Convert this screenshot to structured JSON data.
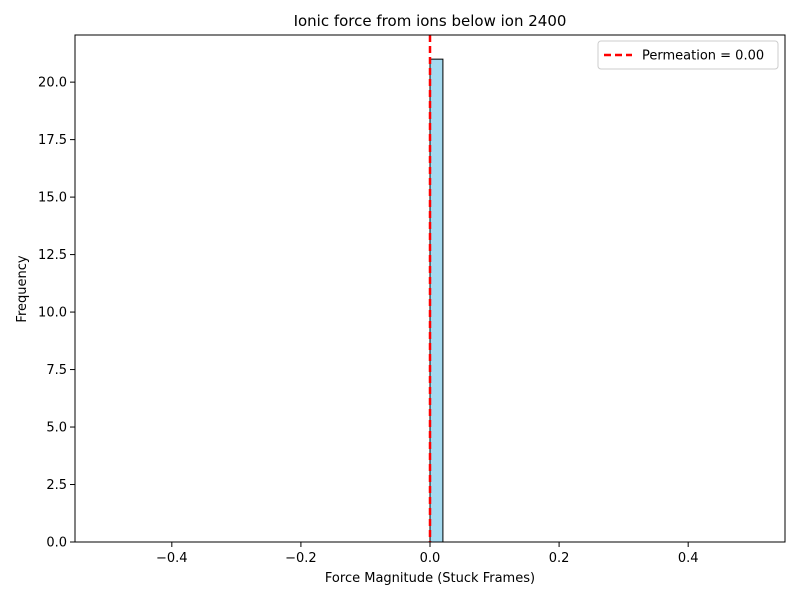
{
  "chart_data": {
    "type": "bar",
    "title": "Ionic force from ions below ion 2400",
    "xlabel": "Force Magnitude (Stuck Frames)",
    "ylabel": "Frequency",
    "xlim": [
      -0.55,
      0.55
    ],
    "ylim": [
      0,
      22.05
    ],
    "xticks": [
      -0.4,
      -0.2,
      0.0,
      0.2,
      0.4
    ],
    "xtick_labels": [
      "−0.4",
      "−0.2",
      "0.0",
      "0.2",
      "0.4"
    ],
    "yticks": [
      0,
      2.5,
      5,
      7.5,
      10,
      12.5,
      15,
      17.5,
      20
    ],
    "ytick_labels": [
      "0.0",
      "2.5",
      "5.0",
      "7.5",
      "10.0",
      "12.5",
      "15.0",
      "17.5",
      "20.0"
    ],
    "bins": {
      "start": -0.5,
      "end": 0.5,
      "count": 50
    },
    "bars": [
      {
        "x_start": 0.0,
        "x_end": 0.02,
        "value": 21
      }
    ],
    "bar_color": "#87CEEB",
    "bar_edge_color": "#000000",
    "grid": false,
    "reference_line": {
      "x": 0.0,
      "color": "#ff0000",
      "style": "dashed",
      "label": "Permeation = 0.00"
    },
    "legend": {
      "position": "top-right",
      "entries": [
        "Permeation = 0.00"
      ]
    }
  }
}
